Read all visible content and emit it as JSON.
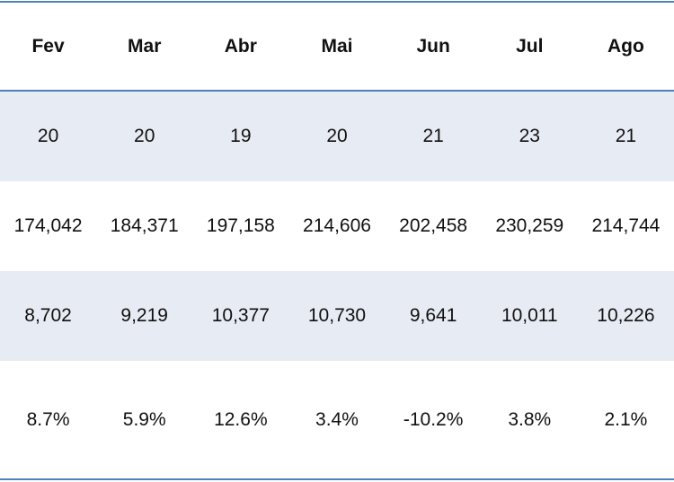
{
  "table": {
    "headers": [
      "Fev",
      "Mar",
      "Abr",
      "Mai",
      "Jun",
      "Jul",
      "Ago"
    ],
    "rows": [
      [
        "20",
        "20",
        "19",
        "20",
        "21",
        "23",
        "21"
      ],
      [
        "174,042",
        "184,371",
        "197,158",
        "214,606",
        "202,458",
        "230,259",
        "214,744"
      ],
      [
        "8,702",
        "9,219",
        "10,377",
        "10,730",
        "9,641",
        "10,011",
        "10,226"
      ],
      [
        "8.7%",
        "5.9%",
        "12.6%",
        "3.4%",
        "-10.2%",
        "3.8%",
        "2.1%"
      ]
    ]
  },
  "colors": {
    "border": "#4f81bd",
    "band": "#e7ebf3"
  }
}
